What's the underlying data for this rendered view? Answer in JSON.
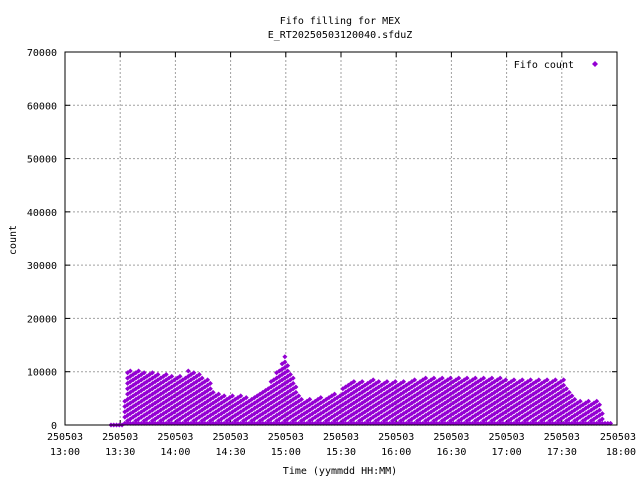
{
  "chart_data": {
    "type": "scatter",
    "title_line1": "Fifo filling for MEX",
    "title_line2": "E_RT20250503120040.sfduZ",
    "xlabel": "Time (yymmdd HH:MM)",
    "ylabel": "count",
    "xlim": [
      "2025-05-03 13:00",
      "2025-05-03 18:00"
    ],
    "ylim": [
      0,
      70000
    ],
    "grid": true,
    "legend_position": "top-right",
    "x_ticks": [
      {
        "date": "250503",
        "time": "13:00"
      },
      {
        "date": "250503",
        "time": "13:30"
      },
      {
        "date": "250503",
        "time": "14:00"
      },
      {
        "date": "250503",
        "time": "14:30"
      },
      {
        "date": "250503",
        "time": "15:00"
      },
      {
        "date": "250503",
        "time": "15:30"
      },
      {
        "date": "250503",
        "time": "16:00"
      },
      {
        "date": "250503",
        "time": "16:30"
      },
      {
        "date": "250503",
        "time": "17:00"
      },
      {
        "date": "250503",
        "time": "17:30"
      },
      {
        "date": "250503",
        "time": "18:00"
      }
    ],
    "y_ticks": [
      0,
      10000,
      20000,
      30000,
      40000,
      50000,
      60000,
      70000
    ],
    "series": [
      {
        "name": "Fifo count",
        "color": "#9400d3",
        "marker": "diamond",
        "envelope": [
          [
            "13:25",
            0
          ],
          [
            "13:32",
            0
          ],
          [
            "13:33",
            10000
          ],
          [
            "13:36",
            10400
          ],
          [
            "13:45",
            9900
          ],
          [
            "13:55",
            9500
          ],
          [
            "14:00",
            9300
          ],
          [
            "14:05",
            9400
          ],
          [
            "14:08",
            10500
          ],
          [
            "14:11",
            10200
          ],
          [
            "14:15",
            9400
          ],
          [
            "14:18",
            8500
          ],
          [
            "14:22",
            6000
          ],
          [
            "14:30",
            5600
          ],
          [
            "14:40",
            5400
          ],
          [
            "14:45",
            6000
          ],
          [
            "14:50",
            7500
          ],
          [
            "14:55",
            9800
          ],
          [
            "14:57",
            11500
          ],
          [
            "15:00",
            13400
          ],
          [
            "15:02",
            10500
          ],
          [
            "15:05",
            8000
          ],
          [
            "15:08",
            5000
          ],
          [
            "15:15",
            5000
          ],
          [
            "15:25",
            5500
          ],
          [
            "15:30",
            6500
          ],
          [
            "15:35",
            8000
          ],
          [
            "15:40",
            8400
          ],
          [
            "15:50",
            8500
          ],
          [
            "16:00",
            8300
          ],
          [
            "16:10",
            8500
          ],
          [
            "16:18",
            9000
          ],
          [
            "16:25",
            8800
          ],
          [
            "16:35",
            9000
          ],
          [
            "16:45",
            8900
          ],
          [
            "17:00",
            8800
          ],
          [
            "17:15",
            8700
          ],
          [
            "17:25",
            8600
          ],
          [
            "17:31",
            8600
          ],
          [
            "17:35",
            6000
          ],
          [
            "17:40",
            4500
          ],
          [
            "17:48",
            4500
          ],
          [
            "17:51",
            4600
          ],
          [
            "17:53",
            1000
          ],
          [
            "17:57",
            500
          ]
        ]
      }
    ]
  }
}
